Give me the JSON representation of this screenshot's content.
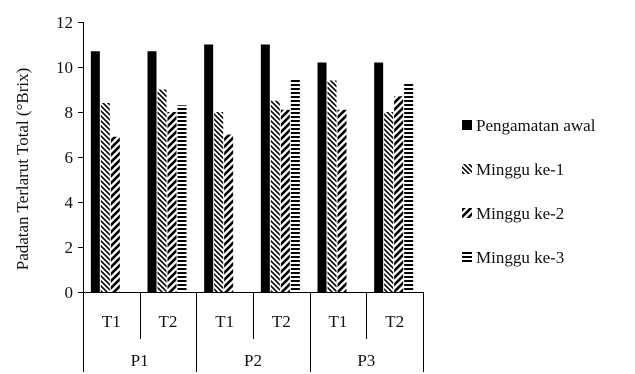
{
  "chart_data": {
    "type": "bar",
    "title": "",
    "ylabel": "Padatan Terlarut Total (°Brix)",
    "xlabel": "",
    "ylim": [
      0,
      12
    ],
    "yticks": [
      "0",
      "2",
      "4",
      "6",
      "8",
      "10",
      "12"
    ],
    "groups": [
      "P1",
      "P2",
      "P3"
    ],
    "categories": [
      "T1",
      "T2",
      "T1",
      "T2",
      "T1",
      "T2"
    ],
    "grid": false,
    "legend_position": "right",
    "series": [
      {
        "name": "Pengamatan awal",
        "pattern": "solid",
        "values": [
          10.7,
          10.7,
          11.0,
          11.0,
          10.2,
          10.2
        ]
      },
      {
        "name": "Minggu ke-1",
        "pattern": "back-diagonal",
        "values": [
          8.4,
          9.0,
          8.0,
          8.5,
          9.4,
          8.0
        ]
      },
      {
        "name": "Minggu ke-2",
        "pattern": "diagonal",
        "values": [
          6.9,
          8.0,
          7.0,
          8.1,
          8.1,
          8.7
        ]
      },
      {
        "name": "Minggu ke-3",
        "pattern": "horizontal",
        "values": [
          0,
          8.3,
          0,
          9.5,
          0,
          9.3
        ]
      }
    ],
    "colors": {
      "ink": "#000000",
      "background": "#ffffff"
    }
  }
}
